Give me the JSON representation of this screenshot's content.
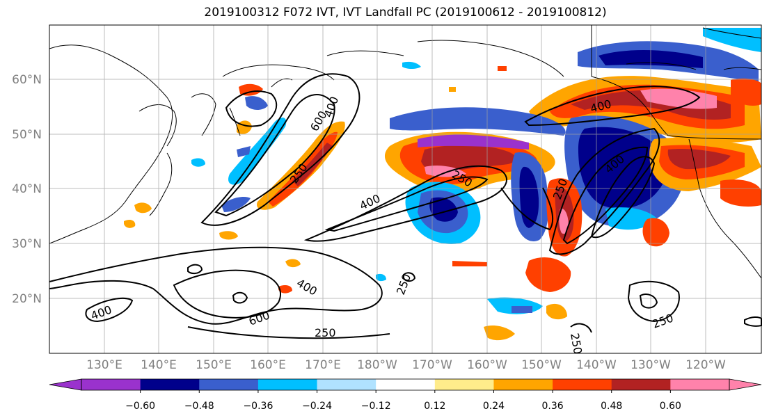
{
  "title": "2019100312 F072 IVT, IVT Landfall PC (2019100612 - 2019100812)",
  "map": {
    "lat_labels": [
      "20°N",
      "30°N",
      "40°N",
      "50°N",
      "60°N"
    ],
    "lon_labels": [
      "130°E",
      "140°E",
      "150°E",
      "160°E",
      "170°E",
      "180°W",
      "170°W",
      "160°W",
      "150°W",
      "140°W",
      "130°W",
      "120°W"
    ],
    "contour_labels": [
      "600",
      "400",
      "250",
      "400",
      "250",
      "400",
      "250",
      "400",
      "400",
      "600",
      "250",
      "250",
      "400",
      "250",
      "250"
    ]
  },
  "colorbar": {
    "colors": [
      "#9a32cd",
      "#00008b",
      "#3a5fcd",
      "#00bfff",
      "#b0e2ff",
      "#ffffff",
      "#ffec8b",
      "#ffa500",
      "#ff4000",
      "#b22222",
      "#ff82ab"
    ],
    "extend_min_color": "#9a32cd",
    "extend_max_color": "#ff82ab",
    "tick_labels": [
      "−0.60",
      "−0.48",
      "−0.36",
      "−0.24",
      "−0.12",
      "0.12",
      "0.24",
      "0.36",
      "0.48",
      "0.60"
    ]
  }
}
